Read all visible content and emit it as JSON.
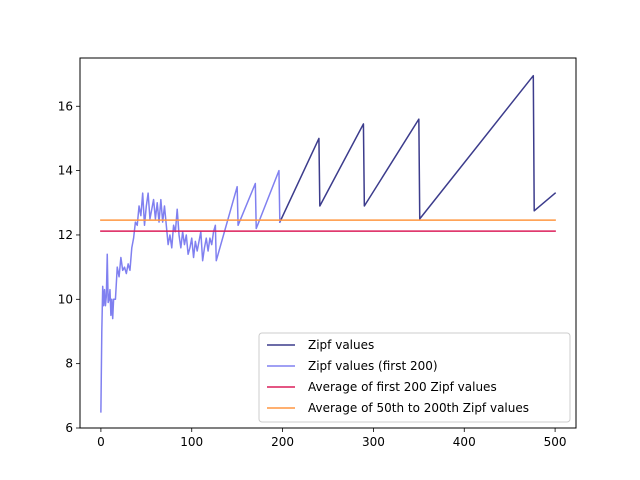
{
  "chart_data": {
    "type": "line",
    "title": "",
    "xlabel": "",
    "ylabel": "",
    "xlim": [
      -23,
      523
    ],
    "ylim": [
      6,
      17.5
    ],
    "xticks": [
      0,
      100,
      200,
      300,
      400,
      500
    ],
    "yticks": [
      6,
      8,
      10,
      12,
      14,
      16
    ],
    "grid": false,
    "legend_position": "bottom-right",
    "series": [
      {
        "name": "Zipf values",
        "color": "#3c3c8c",
        "points": [
          [
            197,
            12.4
          ],
          [
            240,
            15.0
          ],
          [
            241,
            12.9
          ],
          [
            289,
            15.45
          ],
          [
            290,
            12.9
          ],
          [
            350,
            15.6
          ],
          [
            351,
            12.5
          ],
          [
            476,
            16.95
          ],
          [
            477,
            12.75
          ],
          [
            500,
            13.3
          ]
        ]
      },
      {
        "name": "Zipf values (first 200)",
        "color": "#8080f0",
        "points": [
          [
            0,
            6.5
          ],
          [
            1,
            9.0
          ],
          [
            2,
            10.4
          ],
          [
            3,
            9.8
          ],
          [
            4,
            10.3
          ],
          [
            5,
            9.8
          ],
          [
            6,
            10.1
          ],
          [
            7,
            11.4
          ],
          [
            8,
            9.9
          ],
          [
            9,
            10.0
          ],
          [
            10,
            10.3
          ],
          [
            11,
            9.5
          ],
          [
            12,
            10.0
          ],
          [
            13,
            9.4
          ],
          [
            14,
            10.0
          ],
          [
            16,
            10.0
          ],
          [
            18,
            11.0
          ],
          [
            20,
            10.7
          ],
          [
            22,
            11.3
          ],
          [
            24,
            10.9
          ],
          [
            26,
            11.0
          ],
          [
            28,
            10.8
          ],
          [
            30,
            11.1
          ],
          [
            32,
            10.9
          ],
          [
            34,
            11.6
          ],
          [
            36,
            11.9
          ],
          [
            38,
            12.4
          ],
          [
            40,
            12.3
          ],
          [
            42,
            12.9
          ],
          [
            44,
            12.6
          ],
          [
            46,
            13.3
          ],
          [
            48,
            12.3
          ],
          [
            50,
            12.9
          ],
          [
            52,
            13.3
          ],
          [
            54,
            12.5
          ],
          [
            56,
            12.8
          ],
          [
            58,
            13.1
          ],
          [
            60,
            12.5
          ],
          [
            62,
            13.0
          ],
          [
            64,
            12.4
          ],
          [
            66,
            13.1
          ],
          [
            68,
            12.4
          ],
          [
            70,
            12.9
          ],
          [
            72,
            12.3
          ],
          [
            74,
            11.7
          ],
          [
            76,
            12.0
          ],
          [
            78,
            11.6
          ],
          [
            80,
            12.3
          ],
          [
            82,
            12.1
          ],
          [
            84,
            12.8
          ],
          [
            86,
            12.0
          ],
          [
            88,
            11.6
          ],
          [
            90,
            12.1
          ],
          [
            92,
            11.7
          ],
          [
            94,
            12.0
          ],
          [
            96,
            11.4
          ],
          [
            98,
            11.6
          ],
          [
            100,
            11.9
          ],
          [
            102,
            11.3
          ],
          [
            104,
            11.8
          ],
          [
            106,
            11.5
          ],
          [
            108,
            11.8
          ],
          [
            110,
            12.1
          ],
          [
            112,
            11.2
          ],
          [
            114,
            11.6
          ],
          [
            116,
            11.9
          ],
          [
            118,
            11.5
          ],
          [
            120,
            11.9
          ],
          [
            122,
            11.7
          ],
          [
            124,
            12.1
          ],
          [
            126,
            12.3
          ],
          [
            127,
            11.2
          ],
          [
            150,
            13.5
          ],
          [
            151,
            12.3
          ],
          [
            170,
            13.6
          ],
          [
            171,
            12.2
          ],
          [
            196,
            14.0
          ],
          [
            197,
            12.4
          ]
        ]
      },
      {
        "name": "Average of first 200 Zipf values",
        "color": "#dc1e5a",
        "points": [
          [
            0,
            12.12
          ],
          [
            500,
            12.12
          ]
        ]
      },
      {
        "name": "Average of 50th to 200th Zipf values",
        "color": "#ff9640",
        "points": [
          [
            0,
            12.46
          ],
          [
            500,
            12.46
          ]
        ]
      }
    ]
  }
}
